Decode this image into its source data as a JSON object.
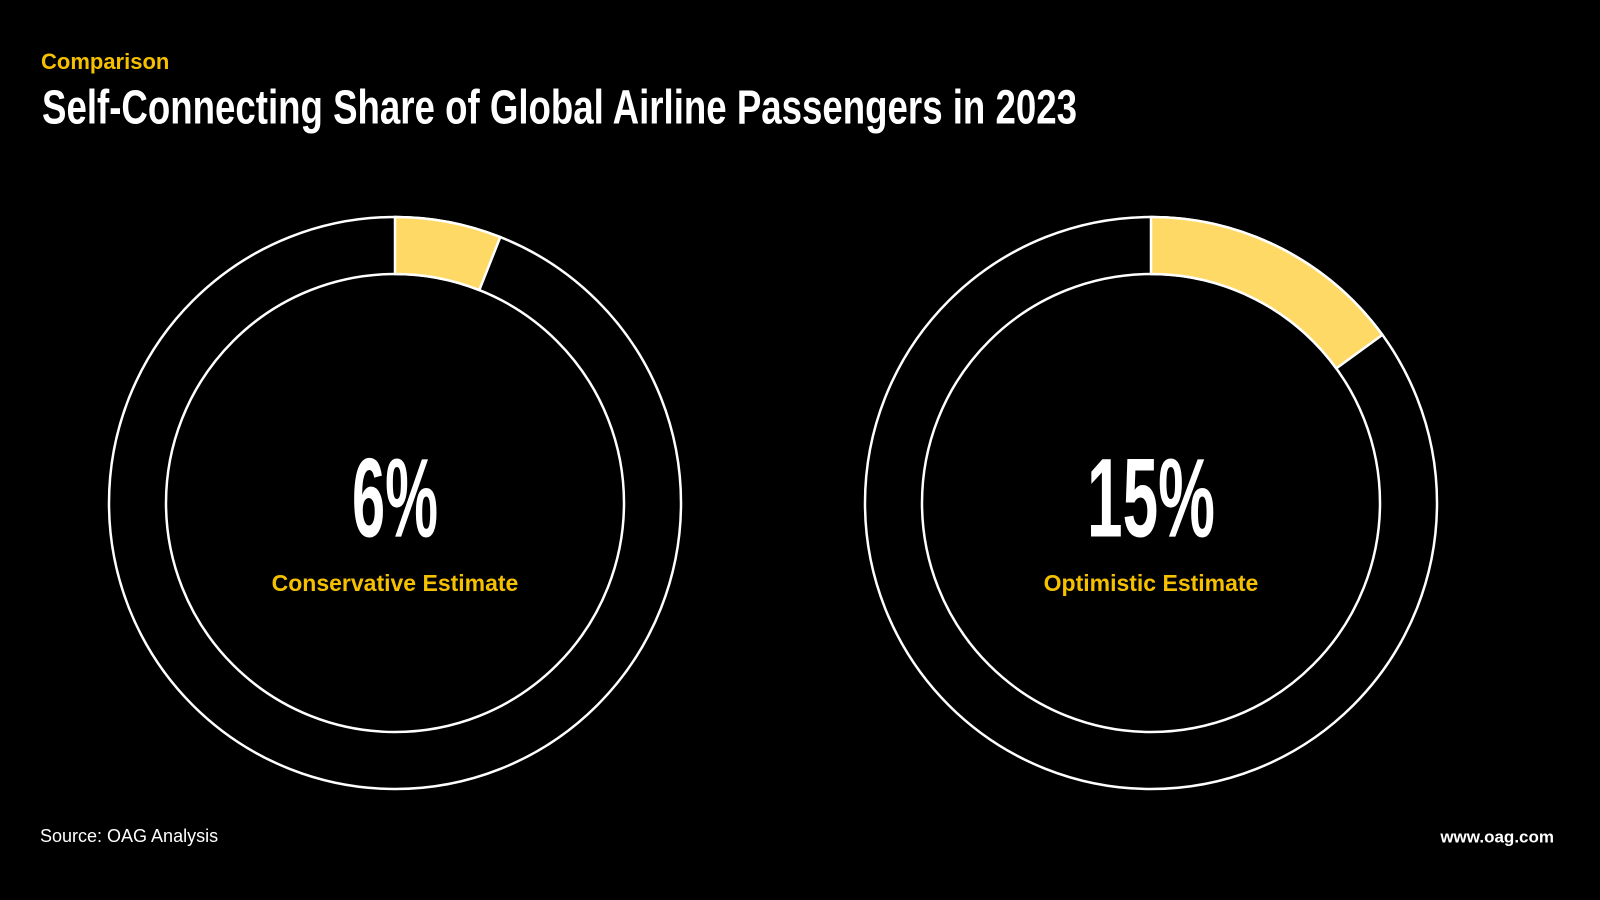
{
  "header": {
    "kicker": "Comparison",
    "title": "Self-Connecting Share of Global Airline Passengers in 2023"
  },
  "chart_data": [
    {
      "type": "donut",
      "categories": [
        "Conservative Estimate"
      ],
      "values": [
        6
      ],
      "value_labels": [
        "6%"
      ],
      "ylim": [
        0,
        100
      ],
      "color": "#ffd966"
    },
    {
      "type": "donut",
      "categories": [
        "Optimistic Estimate"
      ],
      "values": [
        15
      ],
      "value_labels": [
        "15%"
      ],
      "ylim": [
        0,
        100
      ],
      "color": "#ffd966"
    }
  ],
  "footer": {
    "source": "Source: OAG Analysis",
    "website": "www.oag.com"
  }
}
